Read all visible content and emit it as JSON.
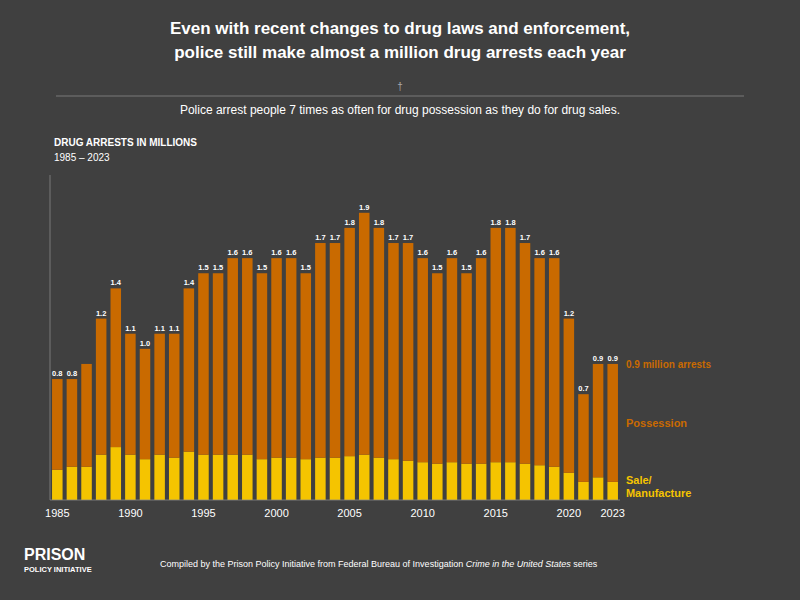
{
  "chart_data": {
    "type": "bar",
    "stacked": true,
    "title": [
      "Even with recent changes to drug laws and enforcement,",
      "police still make almost a million drug arrests each year"
    ],
    "ornament": "†",
    "subtitle": "Police arrest people 7 times as often for drug possession as they do for drug sales.",
    "chart_label": [
      "DRUG ARRESTS IN MILLIONS",
      "1985 – 2023"
    ],
    "annotation": "0.9 million arrests",
    "categories": [
      "1985",
      null,
      null,
      null,
      null,
      "1990",
      null,
      null,
      null,
      null,
      "1995",
      null,
      null,
      null,
      null,
      "2000",
      null,
      null,
      null,
      null,
      "2005",
      null,
      null,
      null,
      null,
      "2010",
      null,
      null,
      null,
      null,
      "2015",
      null,
      null,
      null,
      null,
      "2020",
      null,
      null,
      "2023"
    ],
    "series": [
      {
        "name": "Sale/\nManufacture",
        "color": "#f5c400",
        "values": [
          0.2,
          0.22,
          0.22,
          0.3,
          0.35,
          0.3,
          0.27,
          0.3,
          0.28,
          0.32,
          0.3,
          0.3,
          0.3,
          0.3,
          0.27,
          0.28,
          0.28,
          0.27,
          0.28,
          0.28,
          0.29,
          0.3,
          0.28,
          0.27,
          0.26,
          0.25,
          0.24,
          0.25,
          0.24,
          0.24,
          0.25,
          0.25,
          0.24,
          0.23,
          0.22,
          0.18,
          0.12,
          0.15,
          0.12
        ]
      },
      {
        "name": "Possession",
        "color": "#c96a00",
        "values": [
          0.6,
          0.58,
          0.68,
          0.9,
          1.05,
          0.8,
          0.73,
          0.8,
          0.82,
          1.08,
          1.2,
          1.2,
          1.3,
          1.3,
          1.23,
          1.32,
          1.32,
          1.23,
          1.42,
          1.42,
          1.51,
          1.6,
          1.52,
          1.43,
          1.44,
          1.35,
          1.26,
          1.35,
          1.26,
          1.36,
          1.55,
          1.55,
          1.46,
          1.37,
          1.38,
          1.02,
          0.58,
          0.75,
          0.78
        ]
      }
    ],
    "total_labels": [
      "0.8",
      "0.8",
      null,
      "1.2",
      "1.4",
      "1.1",
      "1.0",
      "1.1",
      "1.1",
      "1.4",
      "1.5",
      "1.5",
      "1.6",
      "1.6",
      "1.5",
      "1.6",
      "1.6",
      "1.5",
      "1.7",
      "1.7",
      "1.8",
      "1.9",
      "1.8",
      "1.7",
      "1.7",
      "1.6",
      "1.5",
      "1.6",
      "1.5",
      "1.6",
      "1.8",
      "1.8",
      "1.7",
      "1.6",
      "1.6",
      "1.2",
      "0.7",
      "0.9",
      "0.9"
    ],
    "ylim": [
      0,
      2.15
    ],
    "yticks": [],
    "tick_labels": "x",
    "grid": false,
    "logo": [
      "PRISON",
      "POLICY INITIATIVE"
    ],
    "source": [
      "Compiled by the Prison Policy Initiative from Federal Bureau of Investigation ",
      "Crime in the United States",
      " series"
    ]
  }
}
